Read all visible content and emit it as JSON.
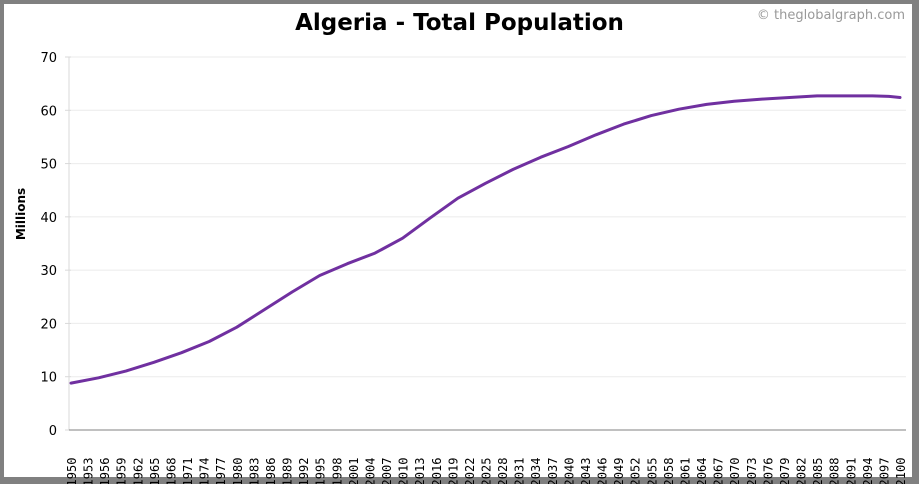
{
  "header": {
    "title": "Algeria - Total Population",
    "credit": "© theglobalgraph.com"
  },
  "colors": {
    "line": "#7030a0",
    "grid": "#ebebeb",
    "axis": "#808080",
    "frame": "#808080"
  },
  "chart_data": {
    "type": "line",
    "title": "Algeria - Total Population",
    "xlabel": "",
    "ylabel": "Millions",
    "ylim": [
      0,
      70
    ],
    "yticks": [
      0,
      10,
      20,
      30,
      40,
      50,
      60,
      70
    ],
    "xlim": [
      1950,
      2100
    ],
    "xticks": [
      1950,
      1953,
      1956,
      1959,
      1962,
      1965,
      1968,
      1971,
      1974,
      1977,
      1980,
      1983,
      1986,
      1989,
      1992,
      1995,
      1998,
      2001,
      2004,
      2007,
      2010,
      2013,
      2016,
      2019,
      2022,
      2025,
      2028,
      2031,
      2034,
      2037,
      2040,
      2043,
      2046,
      2049,
      2052,
      2055,
      2058,
      2061,
      2064,
      2067,
      2070,
      2073,
      2076,
      2079,
      2082,
      2085,
      2088,
      2091,
      2094,
      2097,
      2100
    ],
    "grid": true,
    "legend": null,
    "series": [
      {
        "name": "Total Population",
        "x": [
          1950,
          1955,
          1960,
          1965,
          1970,
          1975,
          1980,
          1985,
          1990,
          1995,
          2000,
          2005,
          2010,
          2015,
          2020,
          2025,
          2030,
          2035,
          2040,
          2045,
          2050,
          2055,
          2060,
          2065,
          2070,
          2075,
          2080,
          2085,
          2090,
          2095,
          2098,
          2100
        ],
        "values": [
          8.8,
          9.8,
          11.1,
          12.7,
          14.5,
          16.6,
          19.3,
          22.6,
          25.9,
          29.0,
          31.2,
          33.2,
          36.0,
          39.8,
          43.5,
          46.3,
          48.9,
          51.2,
          53.2,
          55.4,
          57.4,
          59.0,
          60.2,
          61.1,
          61.7,
          62.1,
          62.4,
          62.7,
          62.7,
          62.7,
          62.6,
          62.4
        ]
      }
    ]
  }
}
